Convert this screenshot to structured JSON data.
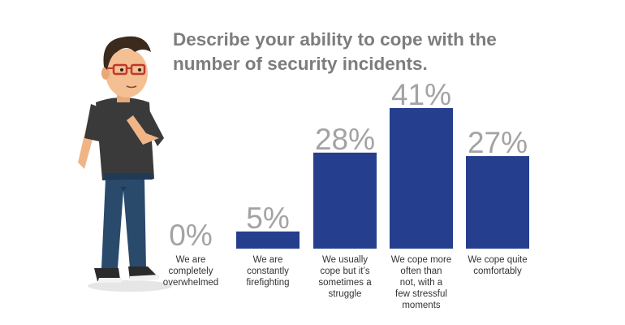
{
  "chart_data": {
    "type": "bar",
    "title_lines": [
      "Describe your ability to cope with the",
      "number of security incidents."
    ],
    "categories": [
      [
        "We are",
        "completely",
        "overwhelmed"
      ],
      [
        "We are",
        "constantly",
        "firefighting"
      ],
      [
        "We usually",
        "cope but it’s",
        "sometimes a",
        "struggle"
      ],
      [
        "We cope more",
        "often than",
        "not, with a",
        "few stressful",
        "moments"
      ],
      [
        "We cope quite",
        "comfortably"
      ]
    ],
    "values": [
      0,
      5,
      28,
      41,
      27
    ],
    "value_labels": [
      "0%",
      "5%",
      "28%",
      "41%",
      "27%"
    ],
    "ylim": [
      0,
      41
    ],
    "grid": false,
    "legend": "none"
  },
  "colors": {
    "bar": "#253f8e",
    "title": "#7d7d7d",
    "value_label": "#a3a3a3",
    "category_label": "#333333"
  },
  "illustration": "thinking-man-with-glasses"
}
